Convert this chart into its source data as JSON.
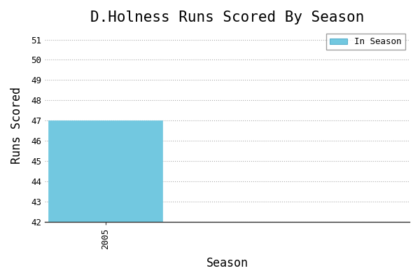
{
  "title": "D.Holness Runs Scored By Season",
  "xlabel": "Season",
  "ylabel": "Runs Scored",
  "seasons": [
    2005
  ],
  "values": [
    47
  ],
  "bar_color": "#72c8e0",
  "bar_edgecolor": "#72c8e0",
  "ylim": [
    42,
    51.5
  ],
  "yticks": [
    42,
    43,
    44,
    45,
    46,
    47,
    48,
    49,
    50,
    51
  ],
  "xlim": [
    2004.2,
    2009.0
  ],
  "bar_width": 1.5,
  "background_color": "#ffffff",
  "grid_color": "#aaaaaa",
  "legend_label": "In Season",
  "title_fontsize": 15,
  "axis_fontsize": 12,
  "tick_fontsize": 9
}
